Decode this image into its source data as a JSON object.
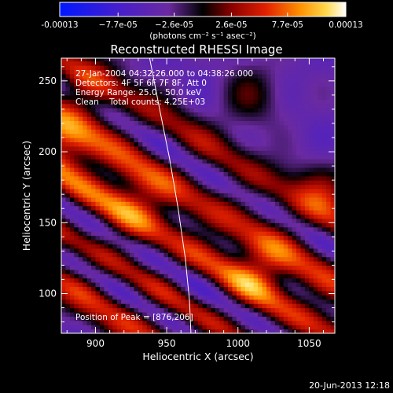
{
  "chart_data": {
    "type": "heatmap",
    "title": "Reconstructed RHESSI Image",
    "xlabel": "Heliocentric X (arcsec)",
    "ylabel": "Heliocentric Y (arcsec)",
    "xlim": [
      876,
      1068
    ],
    "ylim": [
      72,
      266
    ],
    "x_ticks": [
      900,
      950,
      1000,
      1050
    ],
    "y_ticks": [
      100,
      150,
      200,
      250
    ],
    "x_tick_labels": [
      "900",
      "950",
      "1000",
      "1050"
    ],
    "y_tick_labels": [
      "100",
      "150",
      "200",
      "250"
    ],
    "colorbar": {
      "range": [
        -0.00013,
        0.00013
      ],
      "ticks": [
        -0.00013,
        -7.7e-05,
        -2.6e-05,
        2.6e-05,
        7.7e-05,
        0.00013
      ],
      "tick_labels": [
        "-0.00013",
        "−7.7e-05",
        "−2.6e-05",
        "2.6e-05",
        "7.7e-05",
        "0.00013"
      ],
      "units_label": "(photons cm⁻² s⁻¹ asec⁻²)"
    },
    "annotations": {
      "time_range": "27-Jan-2004 04:32:26.000 to 04:38:26.000",
      "detectors": "Detectors: 4F 5F 6F 7F 8F, Att 0",
      "energy_range": "Energy Range: 25.0 - 50.0 keV",
      "clean_counts": "Clean    Total counts: 4.25E+03",
      "peak_position": "Position of Peak = [876,206]"
    },
    "limb_curve": [
      [
        938,
        266
      ],
      [
        945,
        230
      ],
      [
        952,
        195
      ],
      [
        958,
        160
      ],
      [
        963,
        125
      ],
      [
        966,
        95
      ],
      [
        967,
        72
      ]
    ],
    "bands": [
      {
        "a": 208,
        "v": 0.85,
        "w": 18
      },
      {
        "a": 170,
        "v": 0.95,
        "w": 16
      },
      {
        "a": 130,
        "v": 0.9,
        "w": 14
      },
      {
        "a": 96,
        "v": 0.85,
        "w": 13
      },
      {
        "a": 250,
        "v": 0.65,
        "w": 12
      },
      {
        "a": 188,
        "v": -0.8,
        "w": 10
      },
      {
        "a": 148,
        "v": -0.85,
        "w": 10
      },
      {
        "a": 112,
        "v": -0.8,
        "w": 9
      },
      {
        "a": 232,
        "v": -0.6,
        "w": 10
      }
    ],
    "peaks": [
      {
        "x": 880,
        "y": 206,
        "v": 1.0
      },
      {
        "x": 925,
        "y": 165,
        "v": 0.9
      },
      {
        "x": 1015,
        "y": 116,
        "v": 0.95
      },
      {
        "x": 1060,
        "y": 172,
        "v": 0.85
      },
      {
        "x": 1010,
        "y": 240,
        "v": 0.75
      },
      {
        "x": 895,
        "y": 245,
        "v": 0.6
      }
    ]
  },
  "footer": {
    "timestamp": "20-Jun-2013 12:18"
  }
}
